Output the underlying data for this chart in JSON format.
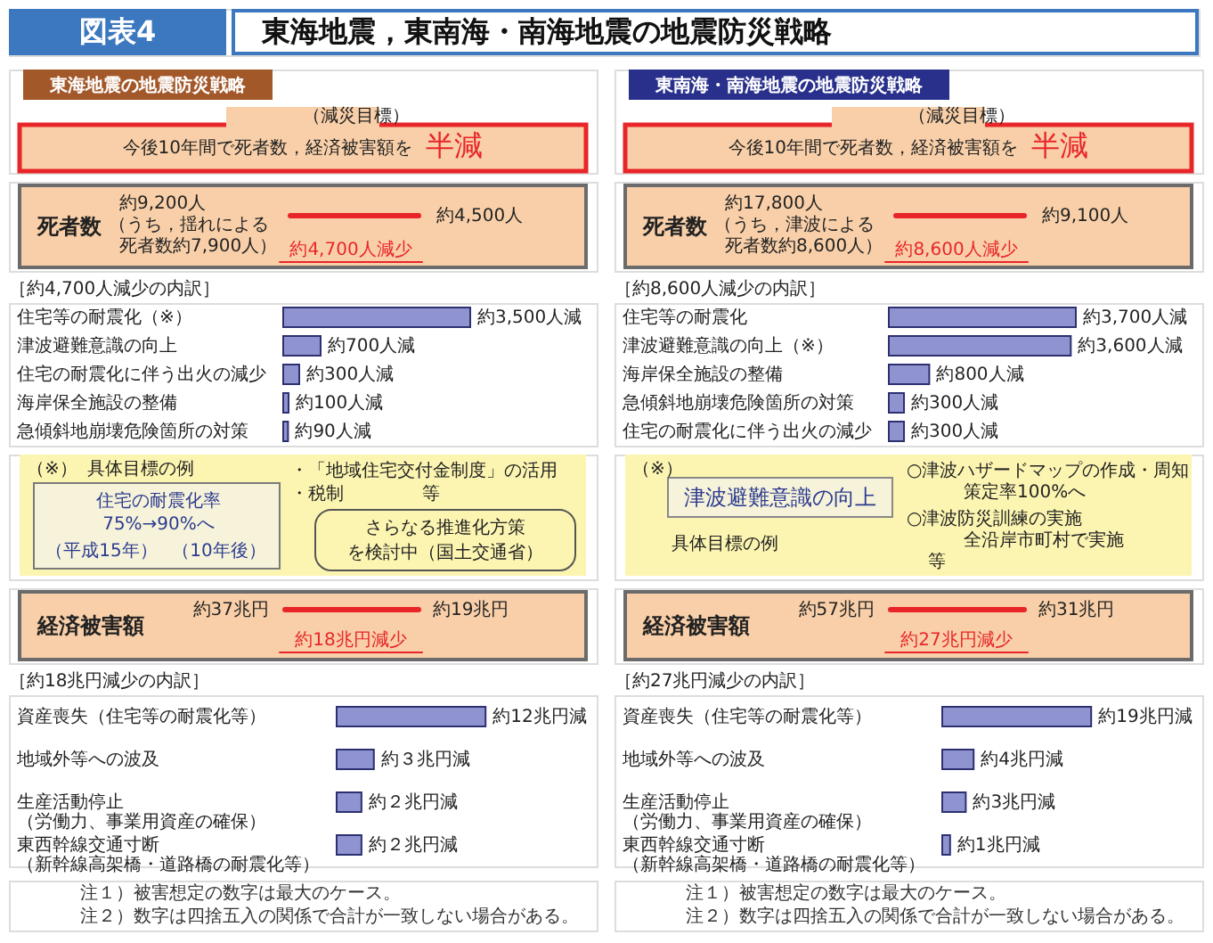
{
  "chart_data": [
    {
      "type": "other",
      "title": "東海地震，東南海・南海地震の地震防災戦略",
      "annotations": [
        "図表4"
      ]
    },
    {
      "type": "other",
      "title": "東海地震の地震防災戦略",
      "subtitle": "（減災目標）",
      "annotations": [
        "今後10年間で死者数，経済被害額を",
        "半減"
      ]
    },
    {
      "type": "other",
      "title": "死者数",
      "annotations": [
        "約9,200人",
        "（うち，揺れによる",
        "死者数約7,900人）",
        "約4,500人",
        "約4,700人減少"
      ]
    },
    {
      "type": "bar",
      "orientation": "horizontal",
      "title": "［約4,700人減少の内訳］",
      "categories": [
        "住宅等の耐震化（※）",
        "津波避難意識の向上",
        "住宅の耐震化に伴う出火の減少",
        "海岸保全施設の整備",
        "急傾斜地崩壊危険箇所の対策"
      ],
      "values": [
        3500,
        700,
        300,
        100,
        90
      ],
      "value_labels": [
        "約3,500人減",
        "約700人減",
        "約300人減",
        "約100人減",
        "約90人減"
      ],
      "color": "#8f94d1",
      "tick_labels": "y"
    },
    {
      "type": "other",
      "annotations": [
        "（※）",
        "具体目標の例",
        "住宅の耐震化率",
        "75%→90%へ",
        "（平成15年）",
        "（10年後）",
        "・「地域住宅交付金制度」の活用",
        "・税制",
        "等",
        "さらなる推進化方策",
        "を検討中（国土交通省）"
      ]
    },
    {
      "type": "other",
      "title": "経済被害額",
      "annotations": [
        "約37兆円",
        "約19兆円",
        "約18兆円減少"
      ]
    },
    {
      "type": "bar",
      "orientation": "horizontal",
      "title": "［約18兆円減少の内訳］",
      "categories": [
        "資産喪失（住宅等の耐震化等）",
        "地域外等への波及",
        "生産活動停止（労働力、事業用資産の確保）",
        "東西幹線交通寸断（新幹線高架橋・道路橋の耐震化等）"
      ],
      "values": [
        12,
        3,
        2,
        2
      ],
      "value_labels": [
        "約12兆円減",
        "約３兆円減",
        "約２兆円減",
        "約２兆円減"
      ],
      "color": "#8f94d1",
      "tick_labels": "y"
    },
    {
      "type": "other",
      "annotations": [
        "注１）被害想定の数字は最大のケース。",
        "注２）数字は四捨五入の関係で合計が一致しない場合がある。"
      ]
    },
    {
      "type": "other",
      "title": "東南海・南海地震の地震防災戦略",
      "subtitle": "（減災目標）",
      "annotations": [
        "今後10年間で死者数，経済被害額を",
        "半減"
      ]
    },
    {
      "type": "other",
      "title": "死者数",
      "annotations": [
        "約17,800人",
        "（うち，津波による",
        "死者数約8,600人）",
        "約9,100人",
        "約8,600人減少"
      ]
    },
    {
      "type": "bar",
      "orientation": "horizontal",
      "title": "［約8,600人減少の内訳］",
      "categories": [
        "住宅等の耐震化",
        "津波避難意識の向上（※）",
        "海岸保全施設の整備",
        "急傾斜地崩壊危険箇所の対策",
        "住宅の耐震化に伴う出火の減少"
      ],
      "values": [
        3700,
        3600,
        800,
        300,
        300
      ],
      "value_labels": [
        "約3,700人減",
        "約3,600人減",
        "約800人減",
        "約300人減",
        "約300人減"
      ],
      "color": "#8f94d1",
      "tick_labels": "y"
    },
    {
      "type": "other",
      "annotations": [
        "（※）",
        "津波避難意識の向上",
        "具体目標の例",
        "○津波ハザードマップの作成・周知",
        "策定率100%へ",
        "○津波防災訓練の実施",
        "全沿岸市町村で実施",
        "等"
      ]
    },
    {
      "type": "other",
      "title": "経済被害額",
      "annotations": [
        "約57兆円",
        "約31兆円",
        "約27兆円減少"
      ]
    },
    {
      "type": "bar",
      "orientation": "horizontal",
      "title": "［約27兆円減少の内訳］",
      "categories": [
        "資産喪失（住宅等の耐震化等）",
        "地域外等への波及",
        "生産活動停止（労働力、事業用資産の確保）",
        "東西幹線交通寸断（新幹線高架橋・道路橋の耐震化等）"
      ],
      "values": [
        19,
        4,
        3,
        1
      ],
      "value_labels": [
        "約19兆円減",
        "約4兆円減",
        "約3兆円減",
        "約1兆円減"
      ],
      "color": "#8f94d1",
      "tick_labels": "y"
    },
    {
      "type": "other",
      "annotations": [
        "注１）被害想定の数字は最大のケース。",
        "注２）数字は四捨五入の関係で合計が一致しない場合がある。"
      ]
    }
  ]
}
